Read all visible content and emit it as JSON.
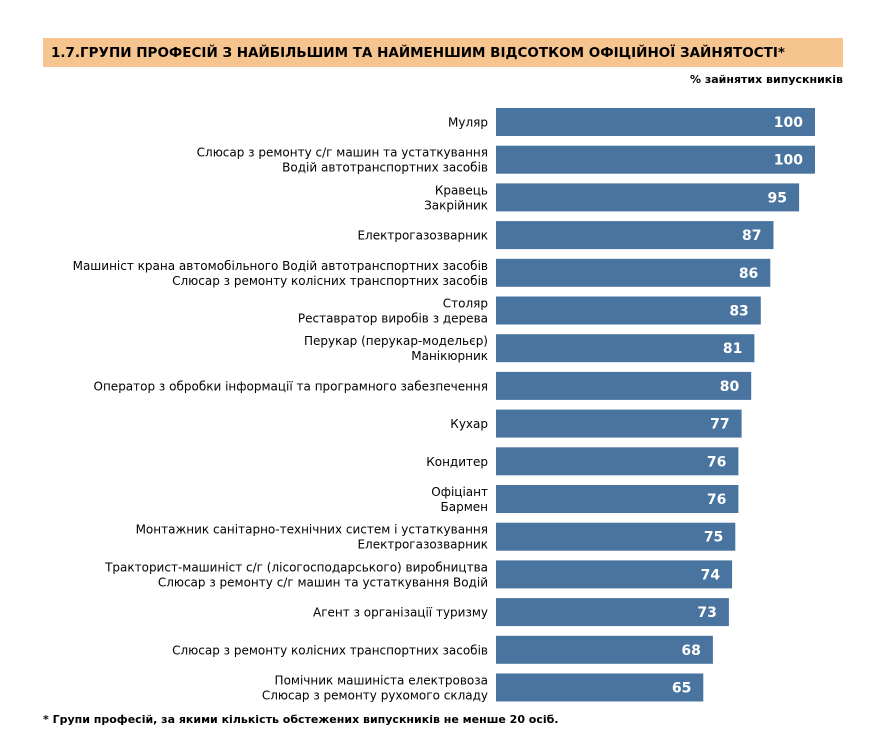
{
  "chart_data": {
    "type": "bar",
    "orientation": "horizontal",
    "title": "1.7.ГРУПИ ПРОФЕСІЙ З НАЙБІЛЬШИМ ТА НАЙМЕНШИМ ВІДСОТКОМ ОФІЦІЙНОЇ ЗАЙНЯТОСТІ*",
    "unit_label": "% зайнятих випускників",
    "xlim": [
      0,
      100
    ],
    "bar_color": "#4a74a0",
    "value_label_color": "#ffffff",
    "categories": [
      [
        "Муляр"
      ],
      [
        "Слюсар з ремонту с/г машин та устаткування",
        "Водій автотранспортних засобів"
      ],
      [
        "Кравець",
        "Закрійник"
      ],
      [
        "Електрогазозварник"
      ],
      [
        "Машиніст крана автомобільного Водій автотранспортних засобів",
        "Слюсар з ремонту колісних транспортних засобів"
      ],
      [
        "Столяр",
        "Реставратор виробів з дерева"
      ],
      [
        "Перукар (перукар-модельєр)",
        "Манікюрник"
      ],
      [
        "Оператор з обробки інформації та програмного забезпечення"
      ],
      [
        "Кухар"
      ],
      [
        "Кондитер"
      ],
      [
        "Офіціант",
        "Бармен"
      ],
      [
        "Монтажник санітарно-технічних систем і устаткування",
        "Електрогазозварник"
      ],
      [
        "Тракторист-машиніст с/г (лісогосподарського) виробництва",
        "Слюсар з ремонту с/г машин та устаткування Водій"
      ],
      [
        "Агент з організації туризму"
      ],
      [
        "Слюсар з ремонту колісних транспортних засобів"
      ],
      [
        "Помічник машиніста електровоза",
        "Слюсар з ремонту рухомого складу"
      ]
    ],
    "values": [
      100,
      100,
      95,
      87,
      86,
      83,
      81,
      80,
      77,
      76,
      76,
      75,
      74,
      73,
      68,
      65
    ]
  },
  "footnote": "* Групи професій, за якими кількість обстежених випускників не менше 20 осіб."
}
